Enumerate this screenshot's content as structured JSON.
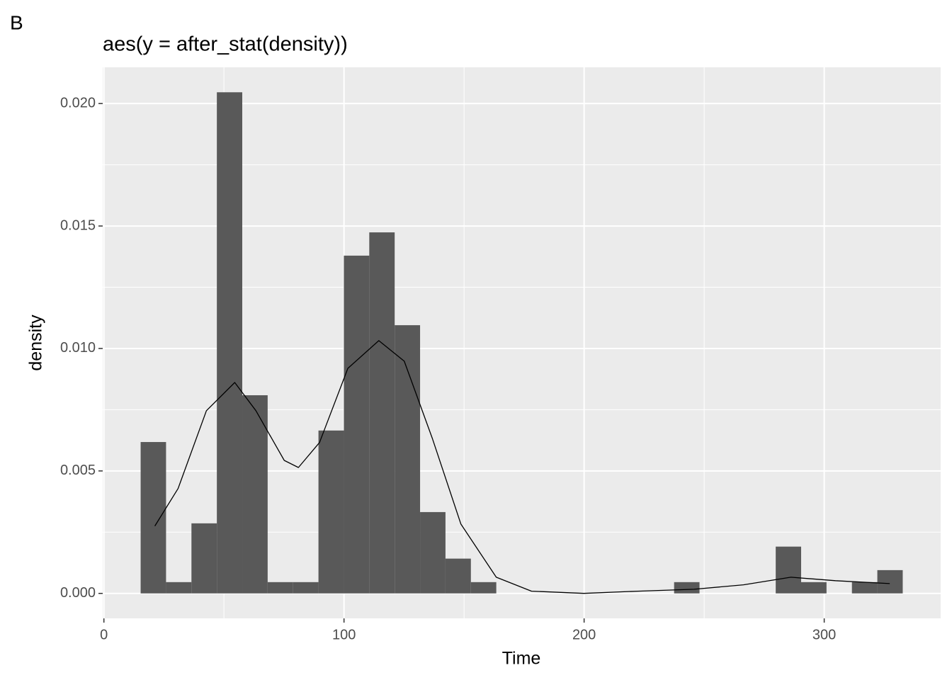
{
  "chart_data": {
    "type": "histogram",
    "tag": "B",
    "title": "aes(y = after_stat(density))",
    "x_label": "Time",
    "y_label": "density",
    "bins": [
      15.3,
      25.88,
      36.46,
      47.04,
      57.62,
      68.2,
      78.78,
      89.36,
      99.94,
      110.52,
      121.1,
      131.68,
      142.26,
      152.84,
      163.42,
      174,
      184.58,
      195.16,
      205.74,
      216.32,
      226.9,
      237.48,
      248.06,
      258.64,
      269.22,
      279.8,
      290.38,
      300.96,
      311.54,
      322.12,
      332.7
    ],
    "values": [
      0.00618,
      0.00046,
      0.00286,
      0.02046,
      0.00809,
      0.00046,
      0.00046,
      0.00665,
      0.01379,
      0.01474,
      0.01095,
      0.00332,
      0.00142,
      0.00046,
      0,
      0,
      0,
      0,
      0,
      0,
      0,
      0.00046,
      0,
      0,
      0,
      0.00191,
      0.00046,
      0,
      0.00046,
      0.00095
    ],
    "color": "#595959",
    "density": {
      "x": [
        21.2,
        30.9,
        42.7,
        54.5,
        63.3,
        75.1,
        81,
        89.8,
        101.6,
        114.5,
        125.1,
        136.9,
        148.7,
        163.4,
        178.1,
        199.9,
        222.3,
        245.8,
        266.4,
        286.1,
        304.7,
        327.3
      ],
      "values": [
        0.00275,
        0.00428,
        0.00746,
        0.00861,
        0.00746,
        0.00543,
        0.00514,
        0.00616,
        0.00919,
        0.01032,
        0.00948,
        0.0063,
        0.00283,
        0.00066,
        9e-05,
        0,
        9e-05,
        0.00017,
        0.00035,
        0.00066,
        0.00052,
        0.0004
      ],
      "color": "#000000"
    },
    "xlim": [
      -0.5,
      348.5
    ],
    "xticks": [
      0,
      100,
      200,
      300
    ],
    "x_minor_breaks": [
      50,
      150,
      250
    ],
    "ylim": [
      -0.00102,
      0.02148
    ],
    "yticks": [
      {
        "value": 0,
        "label": "0.000"
      },
      {
        "value": 0.005,
        "label": "0.005"
      },
      {
        "value": 0.01,
        "label": "0.010"
      },
      {
        "value": 0.015,
        "label": "0.015"
      },
      {
        "value": 0.02,
        "label": "0.020"
      }
    ],
    "y_minor_breaks": [
      0.0025,
      0.0075,
      0.0125,
      0.0175
    ],
    "grid": true
  }
}
